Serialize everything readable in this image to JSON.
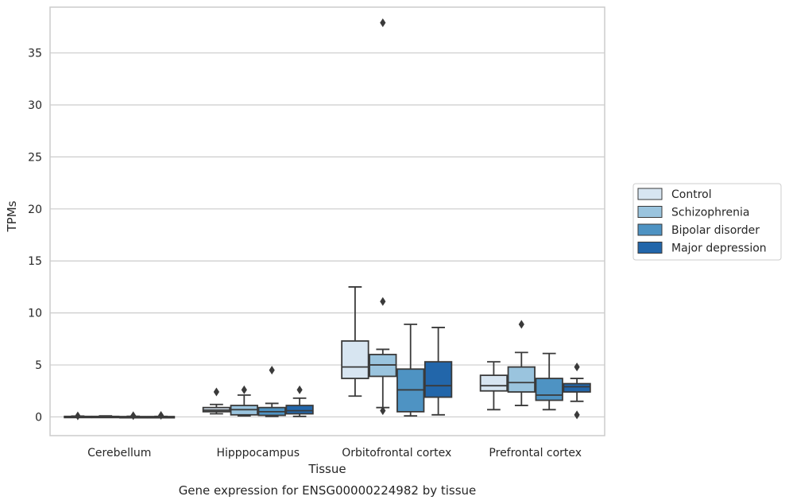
{
  "caption": "Gene expression for ENSG00000224982 by tissue",
  "colors": {
    "Control": "#d7e5f1",
    "Schizophrenia": "#9ac4de",
    "Bipolar disorder": "#4e93c3",
    "Major depression": "#2266aa",
    "grid": "#cccccc",
    "line": "#3a3a3a"
  },
  "chart_data": {
    "type": "box",
    "xlabel": "Tissue",
    "ylabel": "TPMs",
    "ylim": [
      -1.8,
      39.4
    ],
    "yticks": [
      0,
      5,
      10,
      15,
      20,
      25,
      30,
      35
    ],
    "grid": true,
    "legend_position": "right-center",
    "categories": [
      "Cerebellum",
      "Hipppocampus",
      "Orbitofrontal cortex",
      "Prefrontal cortex"
    ],
    "series": [
      {
        "name": "Control",
        "boxes": [
          {
            "whislo": 0.0,
            "q1": 0.0,
            "med": 0.02,
            "q3": 0.05,
            "whishi": 0.08,
            "fliers": [
              0.1
            ]
          },
          {
            "whislo": 0.3,
            "q1": 0.5,
            "med": 0.65,
            "q3": 0.9,
            "whishi": 1.2,
            "fliers": [
              2.4
            ]
          },
          {
            "whislo": 2.0,
            "q1": 3.7,
            "med": 4.8,
            "q3": 7.3,
            "whishi": 12.5,
            "fliers": []
          },
          {
            "whislo": 0.7,
            "q1": 2.5,
            "med": 3.0,
            "q3": 4.0,
            "whishi": 5.3,
            "fliers": []
          }
        ]
      },
      {
        "name": "Schizophrenia",
        "boxes": [
          {
            "whislo": 0.0,
            "q1": 0.0,
            "med": 0.02,
            "q3": 0.05,
            "whishi": 0.1,
            "fliers": []
          },
          {
            "whislo": 0.1,
            "q1": 0.2,
            "med": 0.7,
            "q3": 1.1,
            "whishi": 2.1,
            "fliers": [
              2.6
            ]
          },
          {
            "whislo": 0.9,
            "q1": 3.9,
            "med": 5.0,
            "q3": 6.0,
            "whishi": 6.5,
            "fliers": [
              11.1,
              0.6,
              37.9
            ]
          },
          {
            "whislo": 1.1,
            "q1": 2.4,
            "med": 3.3,
            "q3": 4.8,
            "whishi": 6.2,
            "fliers": [
              8.9
            ]
          }
        ]
      },
      {
        "name": "Bipolar disorder",
        "boxes": [
          {
            "whislo": 0.0,
            "q1": 0.0,
            "med": 0.01,
            "q3": 0.03,
            "whishi": 0.06,
            "fliers": [
              0.12
            ]
          },
          {
            "whislo": 0.05,
            "q1": 0.15,
            "med": 0.5,
            "q3": 0.9,
            "whishi": 1.3,
            "fliers": [
              4.5
            ]
          },
          {
            "whislo": 0.1,
            "q1": 0.5,
            "med": 2.6,
            "q3": 4.6,
            "whishi": 8.9,
            "fliers": []
          },
          {
            "whislo": 0.7,
            "q1": 1.6,
            "med": 2.1,
            "q3": 3.7,
            "whishi": 6.1,
            "fliers": []
          }
        ]
      },
      {
        "name": "Major depression",
        "boxes": [
          {
            "whislo": 0.0,
            "q1": 0.0,
            "med": 0.01,
            "q3": 0.03,
            "whishi": 0.05,
            "fliers": [
              0.15
            ]
          },
          {
            "whislo": 0.05,
            "q1": 0.3,
            "med": 0.6,
            "q3": 1.1,
            "whishi": 1.8,
            "fliers": [
              2.6
            ]
          },
          {
            "whislo": 0.2,
            "q1": 1.9,
            "med": 3.0,
            "q3": 5.3,
            "whishi": 8.6,
            "fliers": []
          },
          {
            "whislo": 1.5,
            "q1": 2.4,
            "med": 2.9,
            "q3": 3.2,
            "whishi": 3.7,
            "fliers": [
              4.8,
              0.2
            ]
          }
        ]
      }
    ]
  }
}
